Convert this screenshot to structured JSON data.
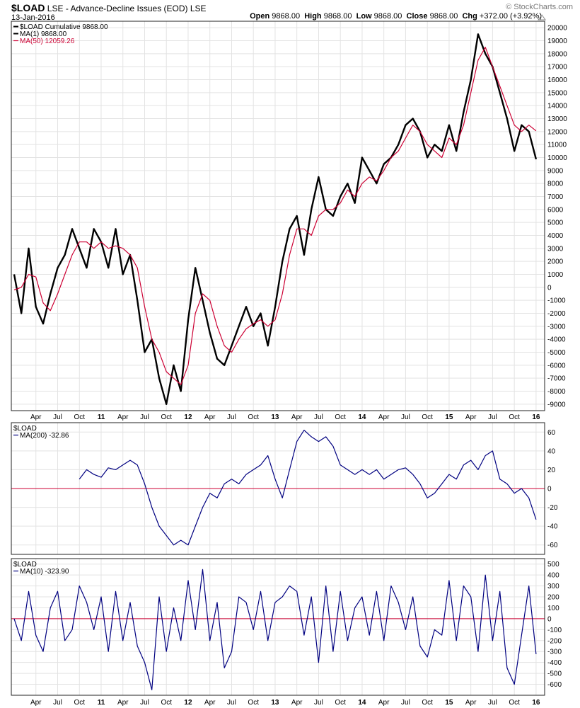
{
  "header": {
    "symbol": "$LOAD",
    "title_rest": "LSE - Advance-Decline Issues (EOD) LSE",
    "date": "13-Jan-2016",
    "brand": "© StockCharts.com",
    "open_label": "Open",
    "open": "9868.00",
    "high_label": "High",
    "high": "9868.00",
    "low_label": "Low",
    "low": "9868.00",
    "close_label": "Close",
    "close": "9868.00",
    "chg_label": "Chg",
    "chg": "+372.00 (+3.92%)",
    "chg_icon": "up-triangle-icon"
  },
  "colors": {
    "price": "#000000",
    "ma50": "#cc0033",
    "osc": "#000080",
    "zero": "#cc0033",
    "grid": "#e3e3e3"
  },
  "x_axis": {
    "labels": [
      "Apr",
      "Jul",
      "Oct",
      "11",
      "Apr",
      "Jul",
      "Oct",
      "12",
      "Apr",
      "Jul",
      "Oct",
      "13",
      "Apr",
      "Jul",
      "Oct",
      "14",
      "Apr",
      "Jul",
      "Oct",
      "15",
      "Apr",
      "Jul",
      "Oct",
      "16"
    ],
    "year_labels": [
      "11",
      "12",
      "13",
      "14",
      "15",
      "16"
    ]
  },
  "chart_data": [
    {
      "type": "line",
      "panel": "main",
      "legend": [
        "$LOAD Cumulative 9868.00",
        "MA(1) 9868.00",
        "MA(50) 12059.26"
      ],
      "ylim": [
        -9500,
        20500
      ],
      "yticks": [
        -9000,
        -8000,
        -7000,
        -6000,
        -5000,
        -4000,
        -3000,
        -2000,
        -1000,
        0,
        1000,
        2000,
        3000,
        4000,
        5000,
        6000,
        7000,
        8000,
        9000,
        10000,
        11000,
        12000,
        13000,
        14000,
        15000,
        16000,
        17000,
        18000,
        19000,
        20000
      ],
      "x_date_range": [
        "2010-01",
        "2016-01-13"
      ],
      "series": [
        {
          "name": "$LOAD Cumulative",
          "color": "#000000",
          "x": [
            "2010-01",
            "2010-02",
            "2010-03",
            "2010-04",
            "2010-05",
            "2010-06",
            "2010-07",
            "2010-08",
            "2010-09",
            "2010-10",
            "2010-11",
            "2010-12",
            "2011-01",
            "2011-02",
            "2011-03",
            "2011-04",
            "2011-05",
            "2011-06",
            "2011-07",
            "2011-08",
            "2011-09",
            "2011-10",
            "2011-11",
            "2011-12",
            "2012-01",
            "2012-02",
            "2012-03",
            "2012-04",
            "2012-05",
            "2012-06",
            "2012-07",
            "2012-08",
            "2012-09",
            "2012-10",
            "2012-11",
            "2012-12",
            "2013-01",
            "2013-02",
            "2013-03",
            "2013-04",
            "2013-05",
            "2013-06",
            "2013-07",
            "2013-08",
            "2013-09",
            "2013-10",
            "2013-11",
            "2013-12",
            "2014-01",
            "2014-02",
            "2014-03",
            "2014-04",
            "2014-05",
            "2014-06",
            "2014-07",
            "2014-08",
            "2014-09",
            "2014-10",
            "2014-11",
            "2014-12",
            "2015-01",
            "2015-02",
            "2015-03",
            "2015-04",
            "2015-05",
            "2015-06",
            "2015-07",
            "2015-08",
            "2015-09",
            "2015-10",
            "2015-11",
            "2015-12",
            "2016-01"
          ],
          "y": [
            1000,
            -2000,
            3000,
            -1500,
            -2800,
            -500,
            1500,
            2500,
            4500,
            3000,
            1500,
            4500,
            3500,
            1500,
            4500,
            1000,
            2500,
            -1000,
            -5000,
            -4000,
            -7000,
            -9000,
            -6000,
            -8000,
            -2500,
            1500,
            -1000,
            -3500,
            -5500,
            -6000,
            -4500,
            -3000,
            -1500,
            -3000,
            -2000,
            -4500,
            -1500,
            2000,
            4500,
            5500,
            2500,
            6000,
            8500,
            6000,
            5500,
            7000,
            8000,
            6500,
            10000,
            9000,
            8000,
            9500,
            10000,
            11000,
            12500,
            13000,
            12000,
            10000,
            11000,
            10500,
            12500,
            10500,
            13500,
            16000,
            19500,
            18000,
            17000,
            15000,
            13000,
            10500,
            12500,
            12000,
            9868
          ]
        },
        {
          "name": "MA(50)",
          "color": "#cc0033",
          "x": [
            "2010-01",
            "2010-02",
            "2010-03",
            "2010-04",
            "2010-05",
            "2010-06",
            "2010-07",
            "2010-08",
            "2010-09",
            "2010-10",
            "2010-11",
            "2010-12",
            "2011-01",
            "2011-02",
            "2011-03",
            "2011-04",
            "2011-05",
            "2011-06",
            "2011-07",
            "2011-08",
            "2011-09",
            "2011-10",
            "2011-11",
            "2011-12",
            "2012-01",
            "2012-02",
            "2012-03",
            "2012-04",
            "2012-05",
            "2012-06",
            "2012-07",
            "2012-08",
            "2012-09",
            "2012-10",
            "2012-11",
            "2012-12",
            "2013-01",
            "2013-02",
            "2013-03",
            "2013-04",
            "2013-05",
            "2013-06",
            "2013-07",
            "2013-08",
            "2013-09",
            "2013-10",
            "2013-11",
            "2013-12",
            "2014-01",
            "2014-02",
            "2014-03",
            "2014-04",
            "2014-05",
            "2014-06",
            "2014-07",
            "2014-08",
            "2014-09",
            "2014-10",
            "2014-11",
            "2014-12",
            "2015-01",
            "2015-02",
            "2015-03",
            "2015-04",
            "2015-05",
            "2015-06",
            "2015-07",
            "2015-08",
            "2015-09",
            "2015-10",
            "2015-11",
            "2015-12",
            "2016-01"
          ],
          "y": [
            -200,
            0,
            1000,
            800,
            -1200,
            -1800,
            -500,
            1000,
            2500,
            3500,
            3500,
            3000,
            3500,
            3000,
            3200,
            3000,
            2500,
            1500,
            -1500,
            -4000,
            -5000,
            -6500,
            -7000,
            -7500,
            -6000,
            -2000,
            -500,
            -1000,
            -3000,
            -4500,
            -5000,
            -4000,
            -3200,
            -2800,
            -2500,
            -3000,
            -2500,
            -500,
            2500,
            4500,
            4500,
            4000,
            5500,
            6000,
            6000,
            6500,
            7500,
            7000,
            8000,
            8500,
            8200,
            9000,
            10000,
            10500,
            11500,
            12500,
            12000,
            11000,
            10500,
            10000,
            11500,
            11000,
            12500,
            15000,
            17500,
            18500,
            17000,
            15500,
            14000,
            12500,
            12000,
            12500,
            12059
          ]
        }
      ]
    },
    {
      "type": "line",
      "panel": "middle",
      "legend": [
        "$LOAD",
        "MA(200) -32.86"
      ],
      "ylim": [
        -70,
        70
      ],
      "yticks": [
        -60,
        -40,
        -20,
        0,
        20,
        40,
        60
      ],
      "reference_line": 0,
      "series": [
        {
          "name": "MA(200)",
          "color": "#000080",
          "x": [
            "2010-10",
            "2010-11",
            "2010-12",
            "2011-01",
            "2011-02",
            "2011-03",
            "2011-04",
            "2011-05",
            "2011-06",
            "2011-07",
            "2011-08",
            "2011-09",
            "2011-10",
            "2011-11",
            "2011-12",
            "2012-01",
            "2012-02",
            "2012-03",
            "2012-04",
            "2012-05",
            "2012-06",
            "2012-07",
            "2012-08",
            "2012-09",
            "2012-10",
            "2012-11",
            "2012-12",
            "2013-01",
            "2013-02",
            "2013-03",
            "2013-04",
            "2013-05",
            "2013-06",
            "2013-07",
            "2013-08",
            "2013-09",
            "2013-10",
            "2013-11",
            "2013-12",
            "2014-01",
            "2014-02",
            "2014-03",
            "2014-04",
            "2014-05",
            "2014-06",
            "2014-07",
            "2014-08",
            "2014-09",
            "2014-10",
            "2014-11",
            "2014-12",
            "2015-01",
            "2015-02",
            "2015-03",
            "2015-04",
            "2015-05",
            "2015-06",
            "2015-07",
            "2015-08",
            "2015-09",
            "2015-10",
            "2015-11",
            "2015-12",
            "2016-01"
          ],
          "y": [
            10,
            20,
            15,
            12,
            22,
            20,
            25,
            30,
            25,
            5,
            -20,
            -40,
            -50,
            -60,
            -55,
            -60,
            -40,
            -20,
            -5,
            -10,
            5,
            10,
            5,
            15,
            20,
            25,
            35,
            10,
            -10,
            20,
            50,
            62,
            55,
            50,
            55,
            45,
            25,
            20,
            15,
            20,
            15,
            20,
            10,
            15,
            20,
            22,
            15,
            5,
            -10,
            -5,
            5,
            15,
            10,
            25,
            30,
            20,
            35,
            40,
            10,
            5,
            -5,
            0,
            -10,
            -33
          ]
        }
      ]
    },
    {
      "type": "line",
      "panel": "bottom",
      "legend": [
        "$LOAD",
        "MA(10) -323.90"
      ],
      "ylim": [
        -700,
        550
      ],
      "yticks": [
        -600,
        -500,
        -400,
        -300,
        -200,
        -100,
        0,
        100,
        200,
        300,
        400,
        500
      ],
      "reference_line": 0,
      "series": [
        {
          "name": "MA(10)",
          "color": "#000080",
          "x": [
            "2010-01",
            "2010-02",
            "2010-03",
            "2010-04",
            "2010-05",
            "2010-06",
            "2010-07",
            "2010-08",
            "2010-09",
            "2010-10",
            "2010-11",
            "2010-12",
            "2011-01",
            "2011-02",
            "2011-03",
            "2011-04",
            "2011-05",
            "2011-06",
            "2011-07",
            "2011-08",
            "2011-09",
            "2011-10",
            "2011-11",
            "2011-12",
            "2012-01",
            "2012-02",
            "2012-03",
            "2012-04",
            "2012-05",
            "2012-06",
            "2012-07",
            "2012-08",
            "2012-09",
            "2012-10",
            "2012-11",
            "2012-12",
            "2013-01",
            "2013-02",
            "2013-03",
            "2013-04",
            "2013-05",
            "2013-06",
            "2013-07",
            "2013-08",
            "2013-09",
            "2013-10",
            "2013-11",
            "2013-12",
            "2014-01",
            "2014-02",
            "2014-03",
            "2014-04",
            "2014-05",
            "2014-06",
            "2014-07",
            "2014-08",
            "2014-09",
            "2014-10",
            "2014-11",
            "2014-12",
            "2015-01",
            "2015-02",
            "2015-03",
            "2015-04",
            "2015-05",
            "2015-06",
            "2015-07",
            "2015-08",
            "2015-09",
            "2015-10",
            "2015-11",
            "2015-12",
            "2016-01"
          ],
          "y": [
            0,
            -200,
            250,
            -150,
            -300,
            100,
            250,
            -200,
            -100,
            300,
            150,
            -100,
            200,
            -300,
            250,
            -200,
            150,
            -250,
            -400,
            -650,
            200,
            -300,
            100,
            -200,
            350,
            -100,
            450,
            -200,
            150,
            -450,
            -300,
            200,
            150,
            -100,
            250,
            -200,
            150,
            200,
            300,
            250,
            -150,
            200,
            -400,
            300,
            -300,
            250,
            -200,
            100,
            200,
            -150,
            250,
            -200,
            300,
            150,
            -100,
            200,
            -250,
            -350,
            -100,
            -150,
            350,
            -200,
            300,
            200,
            -300,
            400,
            -200,
            250,
            -450,
            -600,
            -150,
            300,
            -324
          ]
        }
      ]
    }
  ]
}
